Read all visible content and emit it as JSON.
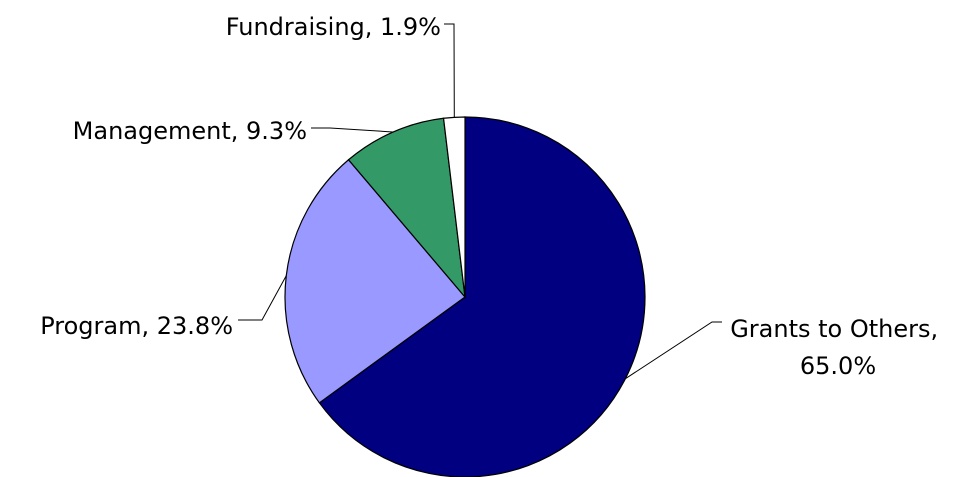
{
  "chart_data": {
    "type": "pie",
    "title": "",
    "slices": [
      {
        "name": "Grants to Others",
        "value": 65.0,
        "label_lines": [
          "Grants to Others,",
          "65.0%"
        ],
        "color": "#000080"
      },
      {
        "name": "Program",
        "value": 23.8,
        "label_lines": [
          "Program, 23.8%"
        ],
        "color": "#9999ff"
      },
      {
        "name": "Management",
        "value": 9.3,
        "label_lines": [
          "Management, 9.3%"
        ],
        "color": "#339966"
      },
      {
        "name": "Fundraising",
        "value": 1.9,
        "label_lines": [
          "Fundraising, 1.9%"
        ],
        "color": "#ffffff"
      }
    ],
    "start_angle": "12 o'clock",
    "direction": "clockwise",
    "legend": "none",
    "labels": "outside with leader lines"
  }
}
